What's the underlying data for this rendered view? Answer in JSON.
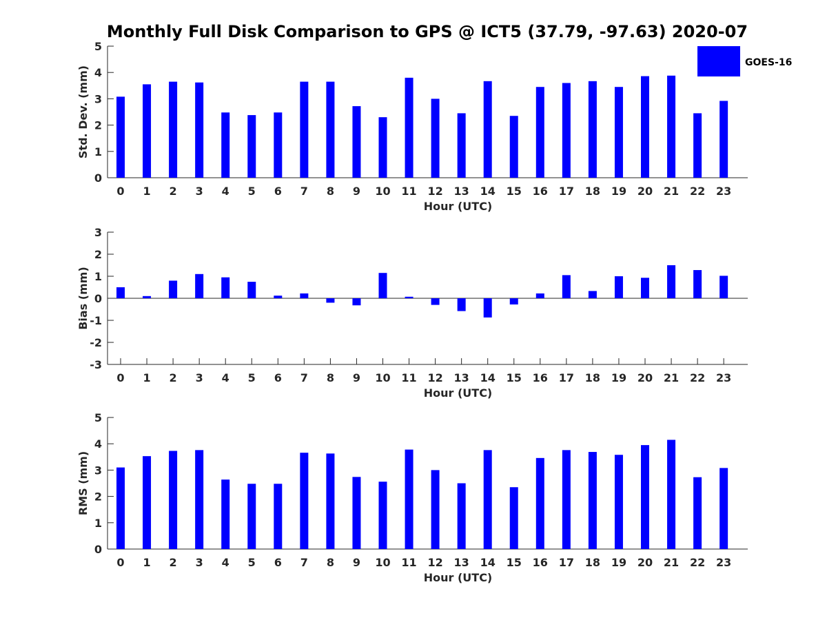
{
  "title": "Monthly Full Disk Comparison to GPS @ ICT5 (37.79, -97.63) 2020-07",
  "legend": {
    "label": "GOES-16",
    "color": "#0000ff"
  },
  "chart_data": [
    {
      "type": "bar",
      "xlabel": "Hour (UTC)",
      "ylabel": "Std. Dev. (mm)",
      "ylim": [
        0,
        5
      ],
      "yticks": [
        "0",
        "1",
        "2",
        "3",
        "4",
        "5"
      ],
      "categories": [
        "0",
        "1",
        "2",
        "3",
        "4",
        "5",
        "6",
        "7",
        "8",
        "9",
        "10",
        "11",
        "12",
        "13",
        "14",
        "15",
        "16",
        "17",
        "18",
        "19",
        "20",
        "21",
        "22",
        "23"
      ],
      "series": [
        {
          "name": "GOES-16",
          "color": "#0000ff",
          "values": [
            3.08,
            3.55,
            3.65,
            3.62,
            2.48,
            2.38,
            2.48,
            3.65,
            3.65,
            2.72,
            2.3,
            3.8,
            3.0,
            2.45,
            3.67,
            2.35,
            3.45,
            3.6,
            3.67,
            3.45,
            3.86,
            3.88,
            2.45,
            2.92
          ]
        }
      ]
    },
    {
      "type": "bar",
      "xlabel": "Hour (UTC)",
      "ylabel": "Bias (mm)",
      "ylim": [
        -3,
        3
      ],
      "yticks": [
        "-3",
        "-2",
        "-1",
        "0",
        "1",
        "2",
        "3"
      ],
      "zero_line": true,
      "categories": [
        "0",
        "1",
        "2",
        "3",
        "4",
        "5",
        "6",
        "7",
        "8",
        "9",
        "10",
        "11",
        "12",
        "13",
        "14",
        "15",
        "16",
        "17",
        "18",
        "19",
        "20",
        "21",
        "22",
        "23"
      ],
      "series": [
        {
          "name": "GOES-16",
          "color": "#0000ff",
          "values": [
            0.5,
            0.1,
            0.8,
            1.1,
            0.95,
            0.75,
            0.12,
            0.22,
            -0.2,
            -0.32,
            1.15,
            0.07,
            -0.3,
            -0.58,
            -0.87,
            -0.28,
            0.22,
            1.05,
            0.33,
            1.0,
            0.93,
            1.5,
            1.28,
            1.02
          ]
        }
      ]
    },
    {
      "type": "bar",
      "xlabel": "Hour (UTC)",
      "ylabel": "RMS (mm)",
      "ylim": [
        0,
        5
      ],
      "yticks": [
        "0",
        "1",
        "2",
        "3",
        "4",
        "5"
      ],
      "categories": [
        "0",
        "1",
        "2",
        "3",
        "4",
        "5",
        "6",
        "7",
        "8",
        "9",
        "10",
        "11",
        "12",
        "13",
        "14",
        "15",
        "16",
        "17",
        "18",
        "19",
        "20",
        "21",
        "22",
        "23"
      ],
      "series": [
        {
          "name": "GOES-16",
          "color": "#0000ff",
          "values": [
            3.1,
            3.53,
            3.73,
            3.76,
            2.64,
            2.48,
            2.48,
            3.66,
            3.63,
            2.74,
            2.56,
            3.78,
            3.0,
            2.5,
            3.76,
            2.35,
            3.46,
            3.76,
            3.69,
            3.58,
            3.95,
            4.15,
            2.73,
            3.08
          ]
        }
      ]
    }
  ]
}
